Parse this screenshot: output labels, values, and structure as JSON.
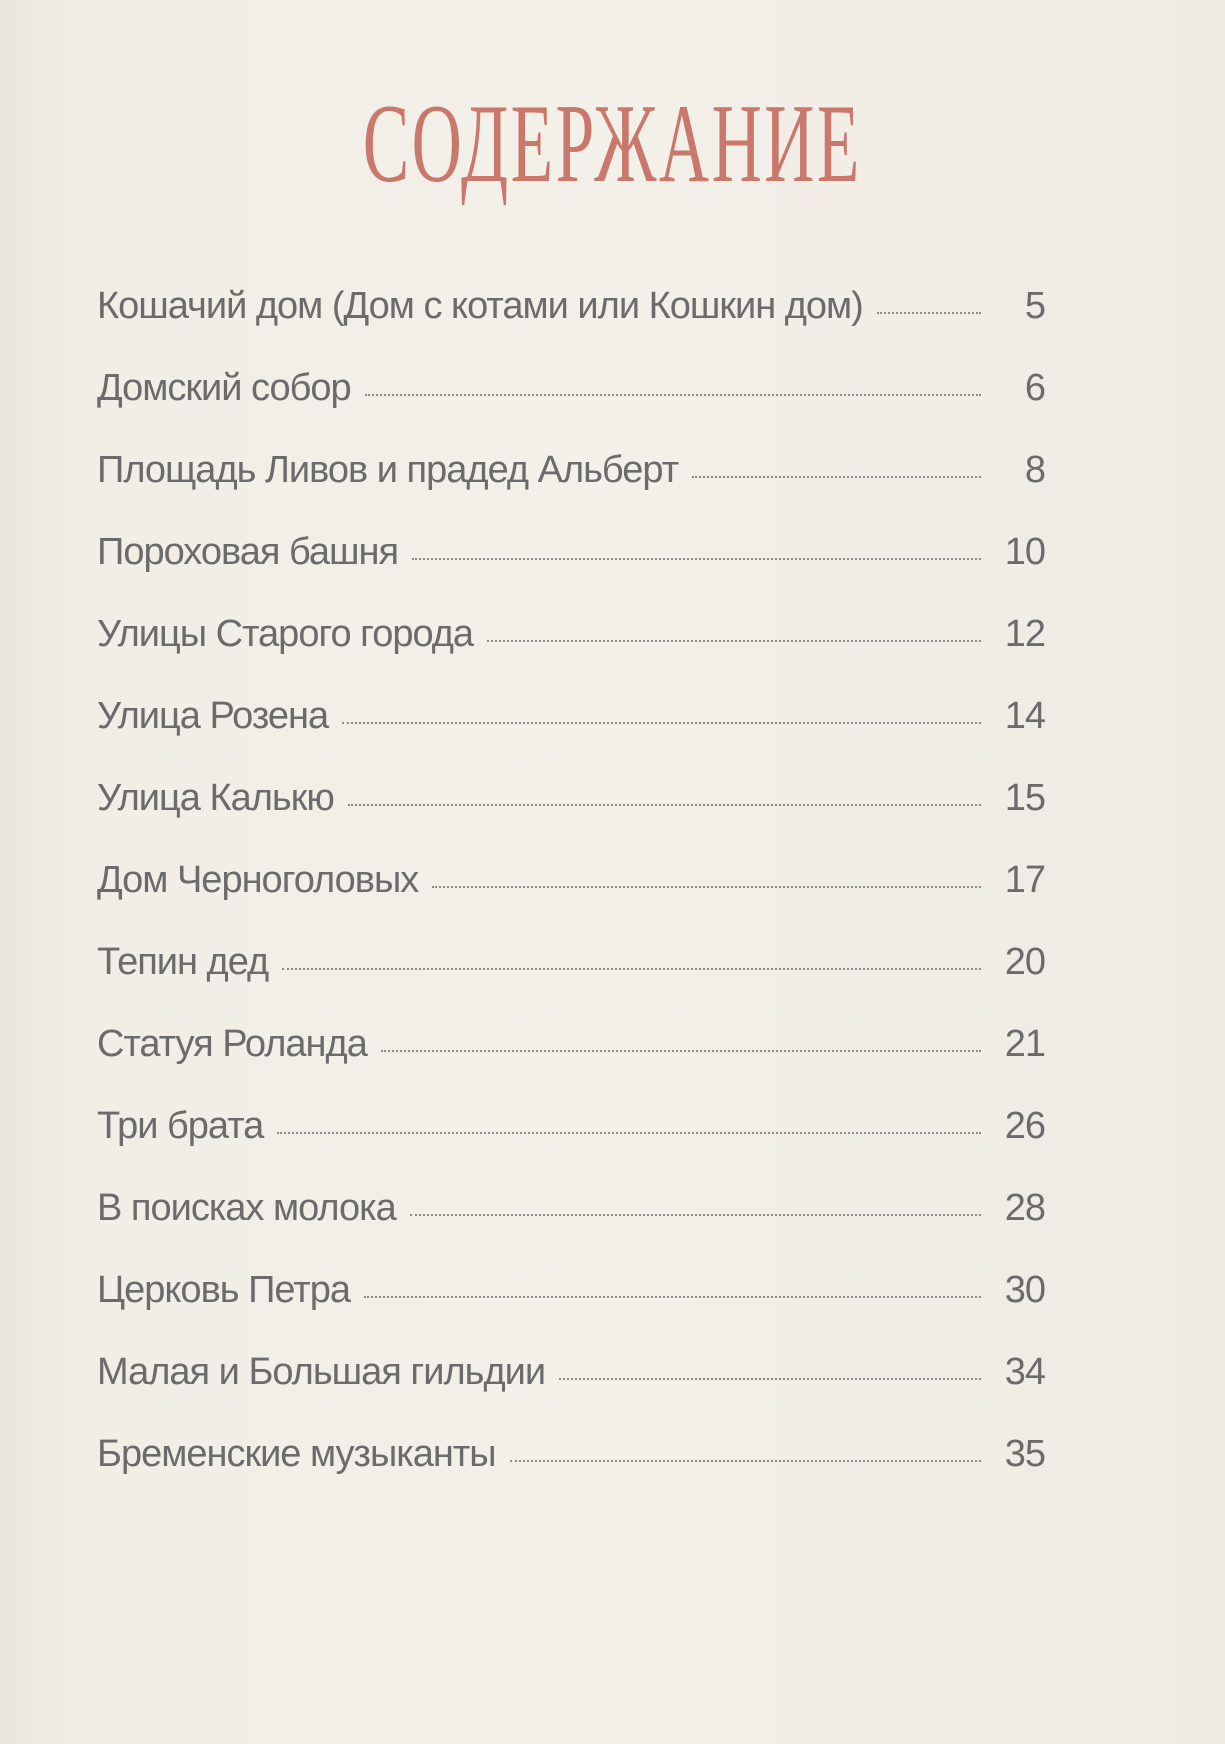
{
  "title": "СОДЕРЖАНИЕ",
  "accent_color": "#c9786b",
  "entries": [
    {
      "label": "Кошачий дом (Дом с котами или Кошкин дом)",
      "page": "5"
    },
    {
      "label": "Домский собор",
      "page": "6"
    },
    {
      "label": "Площадь Ливов и прадед Альберт",
      "page": "8"
    },
    {
      "label": "Пороховая  башня",
      "page": "10"
    },
    {
      "label": "Улицы Старого города",
      "page": "12"
    },
    {
      "label": "Улица Розена",
      "page": "14"
    },
    {
      "label": "Улица Калькю",
      "page": "15"
    },
    {
      "label": "Дом Черноголовых",
      "page": "17"
    },
    {
      "label": "Тепин дед",
      "page": "20"
    },
    {
      "label": "Статуя Роланда",
      "page": "21"
    },
    {
      "label": "Три брата",
      "page": "26"
    },
    {
      "label": "В поисках молока",
      "page": "28"
    },
    {
      "label": "Церковь Петра",
      "page": "30"
    },
    {
      "label": "Малая и Большая гильдии",
      "page": "34"
    },
    {
      "label": "Бременские музыканты",
      "page": "35"
    }
  ]
}
